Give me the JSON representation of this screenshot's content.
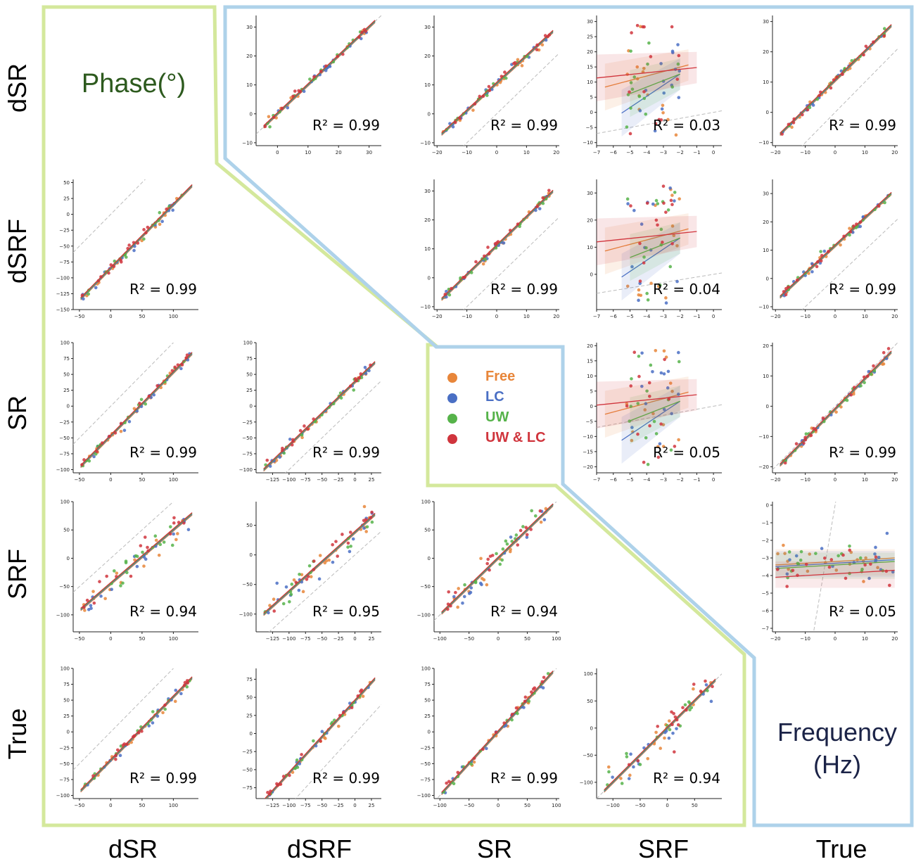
{
  "row_labels": [
    "dSR",
    "dSRF",
    "SR",
    "SRF",
    "True"
  ],
  "col_labels": [
    "dSR",
    "dSRF",
    "SR",
    "SRF",
    "True"
  ],
  "phase_title": "Phase(°)",
  "frequency_title": [
    "Frequency",
    "(Hz)"
  ],
  "colors": {
    "Free": "#e8863a",
    "LC": "#4a6fc4",
    "UW": "#56b34a",
    "UW & LC": "#d0353d",
    "phase_border": "#d4e89c",
    "freq_border": "#aed2ea",
    "phase_title": "#2d5a1e",
    "freq_title": "#1b2347"
  },
  "legend": [
    {
      "name": "Free",
      "color": "#e8863a"
    },
    {
      "name": "LC",
      "color": "#4a6fc4"
    },
    {
      "name": "UW",
      "color": "#56b34a"
    },
    {
      "name": "UW & LC",
      "color": "#d0353d"
    }
  ],
  "chart_data": [
    {
      "id": "p0-1",
      "row": 0,
      "col": 1,
      "type": "scatter",
      "xlim": [
        -7,
        34
      ],
      "ylim": [
        -11,
        34
      ],
      "xticks": [
        0,
        10,
        20,
        30
      ],
      "yticks": [
        -10,
        0,
        10,
        20,
        30
      ],
      "r2": "R² = 0.99",
      "pattern": "tight",
      "slope": 1.0,
      "intercept": 0
    },
    {
      "id": "p0-2",
      "row": 0,
      "col": 2,
      "type": "scatter",
      "xlim": [
        -21,
        21
      ],
      "ylim": [
        -11,
        34
      ],
      "xticks": [
        -20,
        -10,
        0,
        10,
        20
      ],
      "yticks": [
        -10,
        0,
        10,
        20,
        30
      ],
      "r2": "R² = 0.99",
      "pattern": "tight",
      "slope": 0.95,
      "intercept": 10.5
    },
    {
      "id": "p0-3",
      "row": 0,
      "col": 3,
      "type": "scatter",
      "xlim": [
        -7,
        0.5
      ],
      "ylim": [
        -11,
        32
      ],
      "xticks": [
        -7,
        -6,
        -5,
        -4,
        -3,
        -2,
        -1,
        0
      ],
      "yticks": [
        -10,
        -5,
        0,
        5,
        10,
        15,
        20,
        25,
        30
      ],
      "r2": "R² = 0.03",
      "pattern": "cloud",
      "slope": 1.0,
      "intercept": 0
    },
    {
      "id": "p0-4",
      "row": 0,
      "col": 4,
      "type": "scatter",
      "xlim": [
        -21,
        21
      ],
      "ylim": [
        -11,
        32
      ],
      "xticks": [
        -20,
        -10,
        0,
        10,
        20
      ],
      "yticks": [
        -10,
        0,
        10,
        20,
        30
      ],
      "r2": "R² = 0.99",
      "pattern": "tight",
      "slope": 0.96,
      "intercept": 10.5
    },
    {
      "id": "p1-0",
      "row": 1,
      "col": 0,
      "type": "scatter",
      "xlim": [
        -60,
        140
      ],
      "ylim": [
        -150,
        55
      ],
      "xticks": [
        -50,
        0,
        50,
        100
      ],
      "yticks": [
        -150,
        -125,
        -100,
        -75,
        -50,
        -25,
        0,
        25,
        50
      ],
      "r2": "R² = 0.99",
      "pattern": "tight",
      "slope": 1.0,
      "intercept": -85
    },
    {
      "id": "p1-2",
      "row": 1,
      "col": 2,
      "type": "scatter",
      "xlim": [
        -21,
        21
      ],
      "ylim": [
        -11,
        34
      ],
      "xticks": [
        -20,
        -10,
        0,
        10,
        20
      ],
      "yticks": [
        -10,
        0,
        10,
        20,
        30
      ],
      "r2": "R² = 0.99",
      "pattern": "tight",
      "slope": 1.0,
      "intercept": 11
    },
    {
      "id": "p1-3",
      "row": 1,
      "col": 3,
      "type": "scatter",
      "xlim": [
        -7,
        0.5
      ],
      "ylim": [
        -13,
        35
      ],
      "xticks": [
        -7,
        -6,
        -5,
        -4,
        -3,
        -2,
        -1,
        0
      ],
      "yticks": [
        0,
        10,
        20,
        30
      ],
      "r2": "R² = 0.04",
      "pattern": "cloud",
      "slope": 1.0,
      "intercept": 0
    },
    {
      "id": "p1-4",
      "row": 1,
      "col": 4,
      "type": "scatter",
      "xlim": [
        -21,
        21
      ],
      "ylim": [
        -11,
        35
      ],
      "xticks": [
        -20,
        -10,
        0,
        10,
        20
      ],
      "yticks": [
        -10,
        0,
        10,
        20,
        30
      ],
      "r2": "R² = 0.99",
      "pattern": "tight",
      "slope": 0.98,
      "intercept": 11.5
    },
    {
      "id": "p2-0",
      "row": 2,
      "col": 0,
      "type": "scatter",
      "xlim": [
        -60,
        140
      ],
      "ylim": [
        -105,
        100
      ],
      "xticks": [
        -50,
        0,
        50,
        100
      ],
      "yticks": [
        -100,
        -75,
        -50,
        -25,
        0,
        25,
        50,
        75,
        100
      ],
      "r2": "R² = 0.99",
      "pattern": "tight",
      "slope": 1.0,
      "intercept": -47
    },
    {
      "id": "p2-1",
      "row": 2,
      "col": 1,
      "type": "scatter",
      "xlim": [
        -150,
        40
      ],
      "ylim": [
        -105,
        100
      ],
      "xticks": [
        -125,
        -100,
        -75,
        -50,
        -25,
        0,
        25
      ],
      "yticks": [
        -100,
        -75,
        -50,
        -25,
        0,
        25,
        50,
        75,
        100
      ],
      "r2": "R² = 0.99",
      "pattern": "tight",
      "slope": 1.0,
      "intercept": 38
    },
    {
      "id": "p2-3",
      "row": 2,
      "col": 3,
      "type": "scatter",
      "xlim": [
        -7,
        0.5
      ],
      "ylim": [
        -22,
        21
      ],
      "xticks": [
        -7,
        -6,
        -5,
        -4,
        -3,
        -2,
        -1,
        0
      ],
      "yticks": [
        -20,
        -15,
        -10,
        -5,
        0,
        5,
        10,
        15,
        20
      ],
      "r2": "R² = 0.05",
      "pattern": "cloud",
      "slope": 1.0,
      "intercept": 0
    },
    {
      "id": "p2-4",
      "row": 2,
      "col": 4,
      "type": "scatter",
      "xlim": [
        -21,
        21
      ],
      "ylim": [
        -22,
        21
      ],
      "xticks": [
        -20,
        -10,
        0,
        10,
        20
      ],
      "yticks": [
        -20,
        -10,
        0,
        10,
        20
      ],
      "r2": "R² = 0.99",
      "pattern": "tight",
      "slope": 1.0,
      "intercept": -1
    },
    {
      "id": "p3-0",
      "row": 3,
      "col": 0,
      "type": "scatter",
      "xlim": [
        -60,
        140
      ],
      "ylim": [
        -130,
        100
      ],
      "xticks": [
        -50,
        0,
        50,
        100
      ],
      "yticks": [
        -100,
        -50,
        0,
        50,
        100
      ],
      "r2": "R² = 0.94",
      "pattern": "loose",
      "slope": 0.95,
      "intercept": -45
    },
    {
      "id": "p3-1",
      "row": 3,
      "col": 1,
      "type": "scatter",
      "xlim": [
        -150,
        40
      ],
      "ylim": [
        -130,
        90
      ],
      "xticks": [
        -125,
        -100,
        -75,
        -50,
        -25,
        0,
        25
      ],
      "yticks": [
        -100,
        -50,
        0,
        50
      ],
      "r2": "R² = 0.95",
      "pattern": "loose",
      "slope": 1.0,
      "intercept": 38
    },
    {
      "id": "p3-2",
      "row": 3,
      "col": 2,
      "type": "scatter",
      "xlim": [
        -110,
        105
      ],
      "ylim": [
        -130,
        100
      ],
      "xticks": [
        -100,
        -50,
        0,
        50,
        100
      ],
      "yticks": [
        -100,
        -50,
        0,
        50,
        100
      ],
      "r2": "R² = 0.94",
      "pattern": "loose",
      "slope": 1.0,
      "intercept": 0
    },
    {
      "id": "p3-4",
      "row": 3,
      "col": 4,
      "type": "scatter",
      "xlim": [
        -21,
        21
      ],
      "ylim": [
        -7.2,
        0.2
      ],
      "xticks": [
        -20,
        -10,
        0,
        10,
        20
      ],
      "yticks": [
        -7,
        -6,
        -5,
        -4,
        -3,
        -2,
        -1,
        0
      ],
      "r2": "R² = 0.05",
      "pattern": "flat",
      "slope": 1.0,
      "intercept": 0
    },
    {
      "id": "p4-0",
      "row": 4,
      "col": 0,
      "type": "scatter",
      "xlim": [
        -60,
        140
      ],
      "ylim": [
        -105,
        100
      ],
      "xticks": [
        -50,
        0,
        50,
        100
      ],
      "yticks": [
        -100,
        -75,
        -50,
        -25,
        0,
        25,
        50,
        75,
        100
      ],
      "r2": "R² = 0.99",
      "pattern": "tight",
      "slope": 1.0,
      "intercept": -45
    },
    {
      "id": "p4-1",
      "row": 4,
      "col": 1,
      "type": "scatter",
      "xlim": [
        -150,
        40
      ],
      "ylim": [
        -90,
        90
      ],
      "xticks": [
        -125,
        -100,
        -75,
        -50,
        -25,
        0,
        25
      ],
      "yticks": [
        -75,
        -50,
        -25,
        0,
        25,
        50,
        75
      ],
      "r2": "R² = 0.99",
      "pattern": "tight",
      "slope": 1.0,
      "intercept": 45
    },
    {
      "id": "p4-2",
      "row": 4,
      "col": 2,
      "type": "scatter",
      "xlim": [
        -110,
        105
      ],
      "ylim": [
        -105,
        100
      ],
      "xticks": [
        -100,
        -50,
        0,
        50,
        100
      ],
      "yticks": [
        -100,
        -75,
        -50,
        -25,
        0,
        25,
        50,
        75,
        100
      ],
      "r2": "R² = 0.99",
      "pattern": "tight",
      "slope": 1.0,
      "intercept": 0
    },
    {
      "id": "p4-3",
      "row": 4,
      "col": 3,
      "type": "scatter",
      "xlim": [
        -130,
        100
      ],
      "ylim": [
        -130,
        110
      ],
      "xticks": [
        -100,
        -50,
        0,
        50
      ],
      "yticks": [
        -100,
        -50,
        0,
        50,
        100
      ],
      "r2": "R² = 0.94",
      "pattern": "loose",
      "slope": 1.0,
      "intercept": 0
    }
  ]
}
